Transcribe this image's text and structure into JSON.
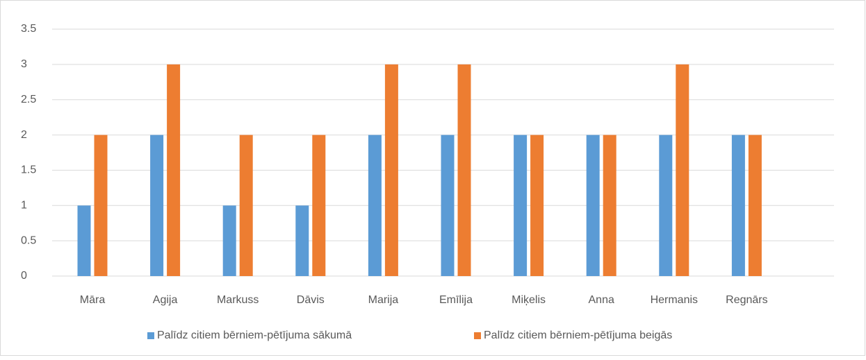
{
  "chart_data": {
    "type": "bar",
    "categories": [
      "Māra",
      "Agija",
      "Markuss",
      "Dāvis",
      "Marija",
      "Emīlija",
      "Miķelis",
      "Anna",
      "Hermanis",
      "Regnārs"
    ],
    "series": [
      {
        "name": "Palīdz citiem bērniem-pētījuma sākumā",
        "color": "#5b9bd5",
        "values": [
          1,
          2,
          1,
          1,
          2,
          2,
          2,
          2,
          2,
          2
        ]
      },
      {
        "name": "Palīdz citiem bērniem-pētījuma beigās",
        "color": "#ed7d31",
        "values": [
          2,
          3,
          2,
          2,
          3,
          3,
          2,
          2,
          3,
          2
        ]
      }
    ],
    "ylim": [
      0,
      3.5
    ],
    "yticks": [
      0,
      0.5,
      1,
      1.5,
      2,
      2.5,
      3,
      3.5
    ],
    "grid": true,
    "legend": "bottom"
  }
}
